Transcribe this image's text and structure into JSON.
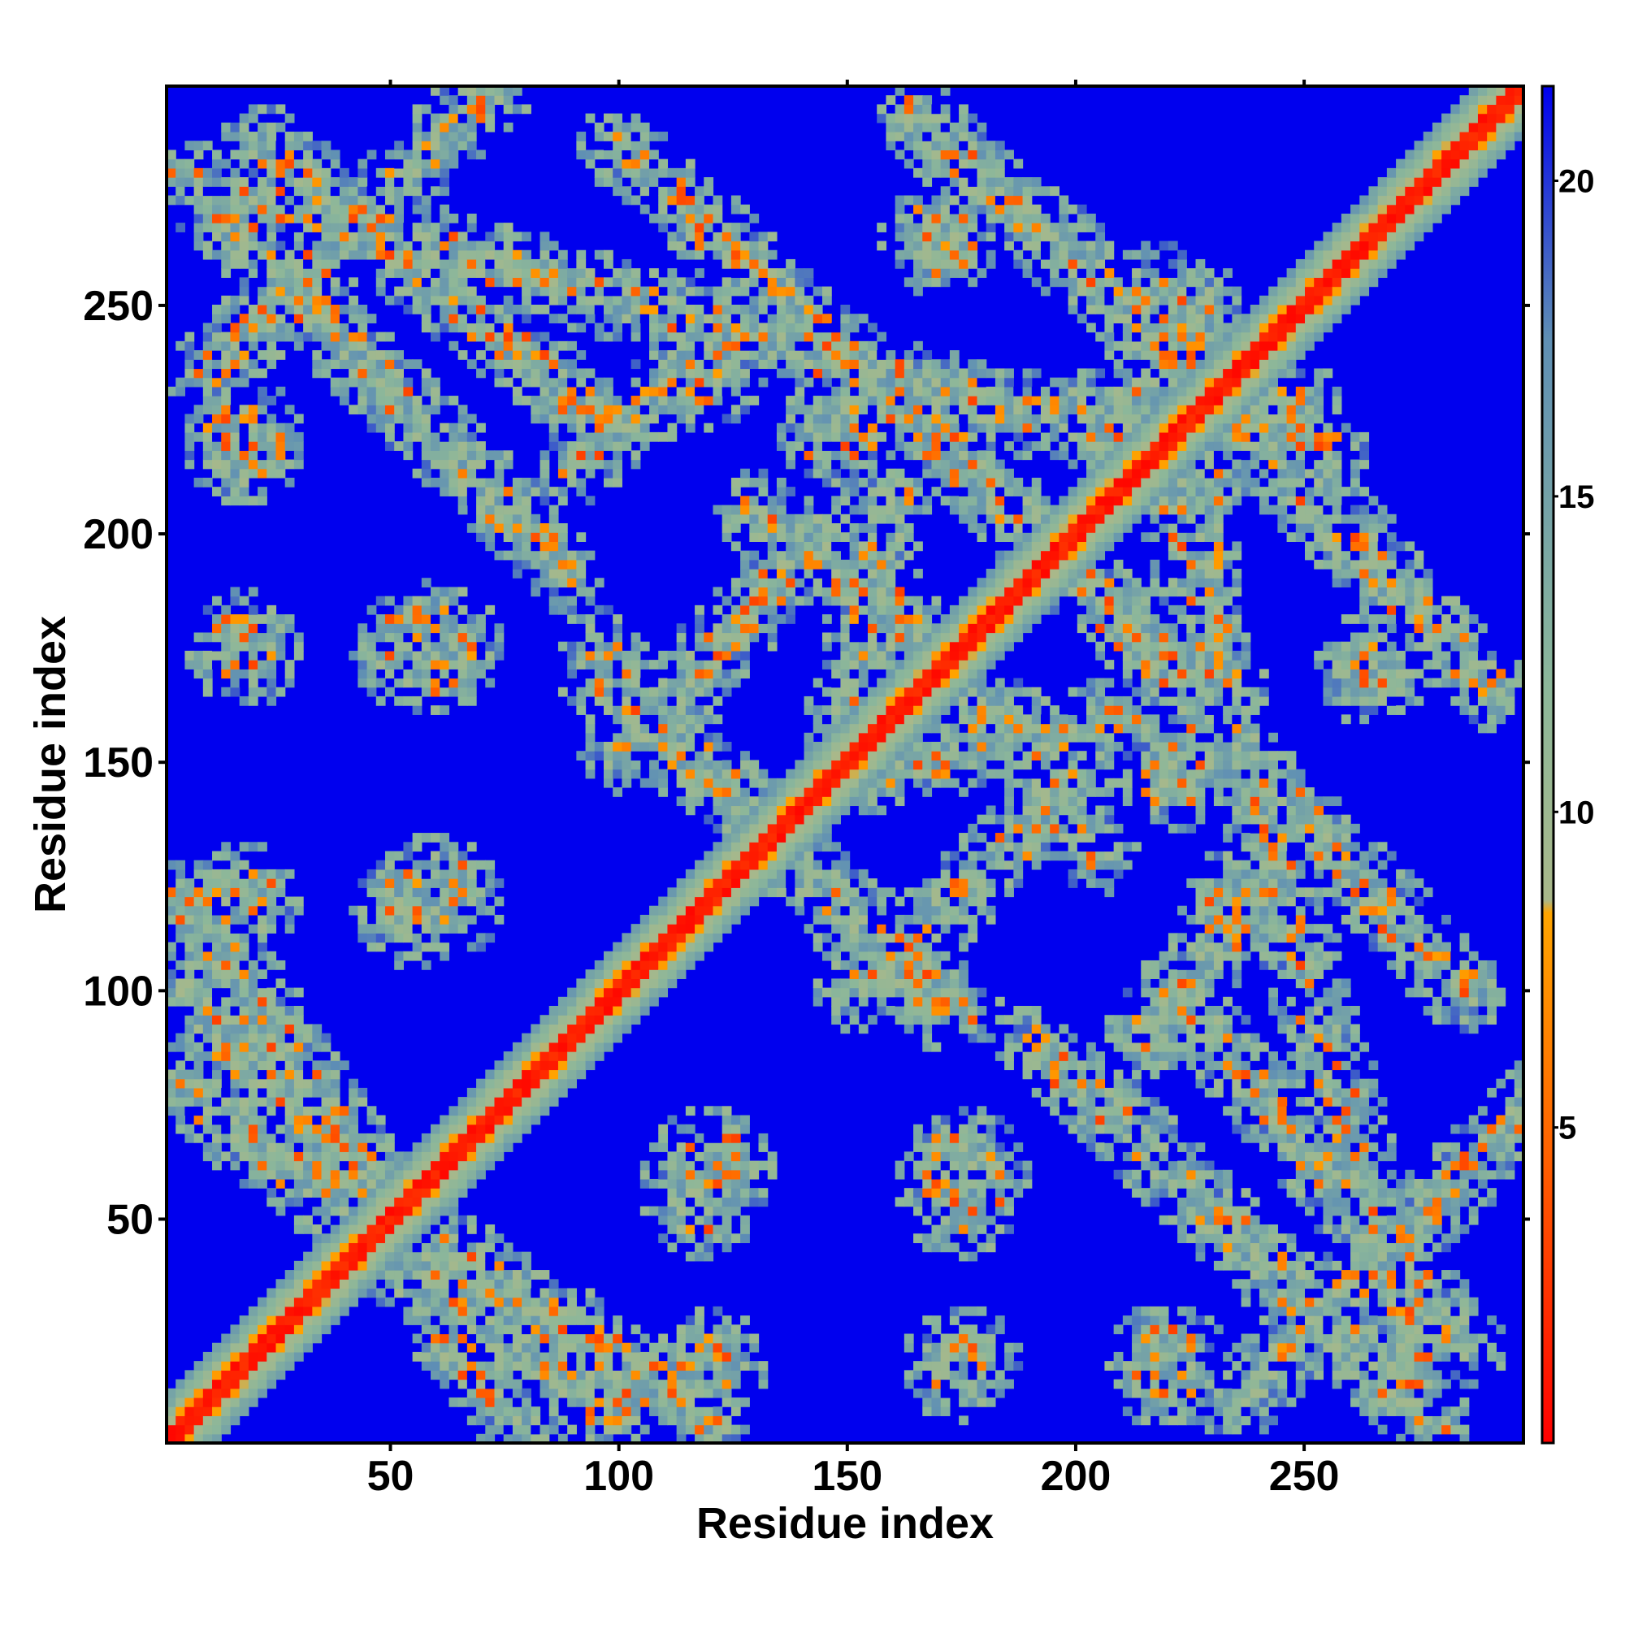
{
  "chart_data": {
    "type": "heatmap",
    "title": "",
    "xlabel": "Residue index",
    "ylabel": "Residue index",
    "xlim": [
      1,
      298
    ],
    "ylim": [
      1,
      298
    ],
    "x_ticks": [
      50,
      100,
      150,
      200,
      250
    ],
    "y_ticks": [
      50,
      100,
      150,
      200,
      250
    ],
    "colorbar": {
      "range": [
        0,
        21.5
      ],
      "ticks": [
        5,
        10,
        15,
        20
      ],
      "stops": [
        {
          "value": 0,
          "color": "#ff0000"
        },
        {
          "value": 4.5,
          "color": "#ff6000"
        },
        {
          "value": 8.4,
          "color": "#ffa500"
        },
        {
          "value": 8.6,
          "color": "#a9b88a"
        },
        {
          "value": 12,
          "color": "#8cb79a"
        },
        {
          "value": 17.5,
          "color": "#5f8fb4"
        },
        {
          "value": 21.5,
          "color": "#0000ee"
        }
      ]
    },
    "background_value": 21.5,
    "background_color": "#0000ee",
    "diagonal_band": {
      "core_value": 0,
      "width_residues": 8
    },
    "contact_segments": [
      {
        "from": [
          5,
          278
        ],
        "to": [
          88,
          192
        ]
      },
      {
        "from": [
          22,
          285
        ],
        "to": [
          100,
          222
        ]
      },
      {
        "from": [
          5,
          78
        ],
        "to": [
          100,
          6
        ]
      },
      {
        "from": [
          8,
          118
        ],
        "to": [
          80,
          4
        ]
      },
      {
        "from": [
          30,
          60
        ],
        "to": [
          120,
          4
        ]
      },
      {
        "from": [
          96,
          168
        ],
        "to": [
          175,
          95
        ]
      },
      {
        "from": [
          100,
          152
        ],
        "to": [
          145,
          200
        ]
      },
      {
        "from": [
          155,
          190
        ],
        "to": [
          205,
          130
        ]
      },
      {
        "from": [
          155,
          148
        ],
        "to": [
          210,
          160
        ]
      },
      {
        "from": [
          165,
          228
        ],
        "to": [
          285,
          100
        ]
      },
      {
        "from": [
          195,
          265
        ],
        "to": [
          292,
          165
        ]
      },
      {
        "from": [
          215,
          230
        ],
        "to": [
          275,
          15
        ]
      },
      {
        "from": [
          235,
          10
        ],
        "to": [
          315,
          90
        ]
      },
      {
        "from": [
          155,
          228
        ],
        "to": [
          250,
          228
        ]
      },
      {
        "from": [
          90,
          215
        ],
        "to": [
          115,
          235
        ]
      }
    ],
    "contact_blobs": [
      {
        "center": [
          18,
          220
        ],
        "radius": 10
      },
      {
        "center": [
          18,
          175
        ],
        "radius": 10
      },
      {
        "center": [
          55,
          175
        ],
        "radius": 12
      },
      {
        "center": [
          55,
          118
        ],
        "radius": 11
      },
      {
        "center": [
          120,
          60
        ],
        "radius": 14
      },
      {
        "center": [
          175,
          60
        ],
        "radius": 14
      },
      {
        "center": [
          220,
          18
        ],
        "radius": 12
      },
      {
        "center": [
          175,
          18
        ],
        "radius": 10
      },
      {
        "center": [
          120,
          18
        ],
        "radius": 9
      },
      {
        "center": [
          250,
          218
        ],
        "radius": 12
      },
      {
        "center": [
          265,
          170
        ],
        "radius": 10
      },
      {
        "center": [
          235,
          118
        ],
        "radius": 10
      },
      {
        "center": [
          148,
          222
        ],
        "radius": 11
      }
    ]
  }
}
